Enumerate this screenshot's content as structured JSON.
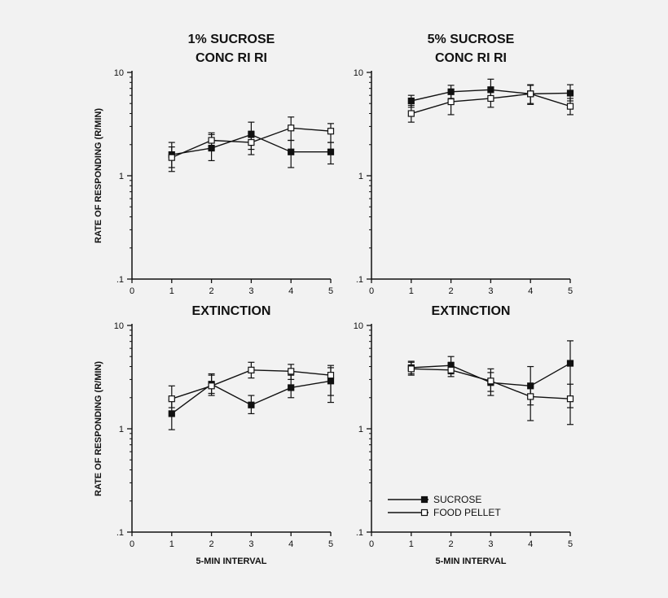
{
  "chart_data": [
    {
      "type": "line",
      "title_lines": [
        "1% SUCROSE",
        "CONC RI RI"
      ],
      "ylabel": "RATE OF RESPONDING (R/MIN)",
      "xlabel": "",
      "yscale": "log",
      "ylim": [
        0.1,
        10
      ],
      "xlim": [
        0,
        5
      ],
      "xticks": [
        "0",
        "1",
        "2",
        "3",
        "4",
        "5"
      ],
      "yticks": [
        ".1",
        "1",
        "10"
      ],
      "x": [
        1,
        2,
        3,
        4,
        5
      ],
      "series": [
        {
          "name": "SUCROSE",
          "marker": "filled-square",
          "values": [
            1.6,
            1.85,
            2.5,
            1.7,
            1.7
          ],
          "error_low": [
            1.2,
            1.4,
            1.8,
            1.2,
            1.3
          ],
          "error_high": [
            2.1,
            2.5,
            3.3,
            2.2,
            2.1
          ]
        },
        {
          "name": "FOOD PELLET",
          "marker": "open-square",
          "values": [
            1.5,
            2.2,
            2.1,
            2.9,
            2.7
          ],
          "error_low": [
            1.1,
            1.9,
            1.6,
            2.2,
            2.1
          ],
          "error_high": [
            1.9,
            2.6,
            2.7,
            3.7,
            3.2
          ]
        }
      ]
    },
    {
      "type": "line",
      "title_lines": [
        "5% SUCROSE",
        "CONC RI RI"
      ],
      "ylabel": "",
      "xlabel": "",
      "yscale": "log",
      "ylim": [
        0.1,
        10
      ],
      "xlim": [
        0,
        5
      ],
      "xticks": [
        "0",
        "1",
        "2",
        "3",
        "4",
        "5"
      ],
      "yticks": [
        ".1",
        "1",
        "10"
      ],
      "x": [
        1,
        2,
        3,
        4,
        5
      ],
      "series": [
        {
          "name": "SUCROSE",
          "marker": "filled-square",
          "values": [
            5.3,
            6.5,
            6.8,
            6.2,
            6.3
          ],
          "error_low": [
            4.6,
            5.6,
            5.6,
            4.9,
            5.3
          ],
          "error_high": [
            6.0,
            7.5,
            8.6,
            7.6,
            7.6
          ]
        },
        {
          "name": "FOOD PELLET",
          "marker": "open-square",
          "values": [
            4.0,
            5.2,
            5.6,
            6.2,
            4.7
          ],
          "error_low": [
            3.3,
            3.9,
            4.6,
            5.0,
            3.9
          ],
          "error_high": [
            4.8,
            6.4,
            6.7,
            7.5,
            5.6
          ]
        }
      ]
    },
    {
      "type": "line",
      "title_lines": [
        "EXTINCTION"
      ],
      "ylabel": "RATE OF RESPONDING (R/MIN)",
      "xlabel": "5-MIN INTERVAL",
      "yscale": "log",
      "ylim": [
        0.1,
        10
      ],
      "xlim": [
        0,
        5
      ],
      "xticks": [
        "0",
        "1",
        "2",
        "3",
        "4",
        "5"
      ],
      "yticks": [
        ".1",
        "1",
        "10"
      ],
      "x": [
        1,
        2,
        3,
        4,
        5
      ],
      "series": [
        {
          "name": "SUCROSE",
          "marker": "filled-square",
          "values": [
            1.4,
            2.7,
            1.7,
            2.5,
            2.9
          ],
          "error_low": [
            0.98,
            2.2,
            1.4,
            2.0,
            2.1
          ],
          "error_high": [
            1.9,
            3.3,
            2.1,
            3.3,
            3.9
          ]
        },
        {
          "name": "FOOD PELLET",
          "marker": "open-square",
          "values": [
            1.95,
            2.6,
            3.7,
            3.6,
            3.3
          ],
          "error_low": [
            1.6,
            2.1,
            3.1,
            3.0,
            1.8
          ],
          "error_high": [
            2.6,
            3.4,
            4.4,
            4.2,
            4.1
          ]
        }
      ]
    },
    {
      "type": "line",
      "title_lines": [
        "EXTINCTION"
      ],
      "ylabel": "",
      "xlabel": "5-MIN INTERVAL",
      "yscale": "log",
      "ylim": [
        0.1,
        10
      ],
      "xlim": [
        0,
        5
      ],
      "xticks": [
        "0",
        "1",
        "2",
        "3",
        "4",
        "5"
      ],
      "yticks": [
        ".1",
        "1",
        "10"
      ],
      "x": [
        1,
        2,
        3,
        4,
        5
      ],
      "legend": {
        "placement": "bottom-left",
        "entries": [
          "SUCROSE",
          "FOOD PELLET"
        ]
      },
      "series": [
        {
          "name": "SUCROSE",
          "marker": "filled-square",
          "values": [
            3.9,
            4.1,
            2.8,
            2.6,
            4.3
          ],
          "error_low": [
            3.4,
            3.4,
            2.1,
            1.7,
            1.6
          ],
          "error_high": [
            4.5,
            5.0,
            3.8,
            4.0,
            7.1
          ]
        },
        {
          "name": "FOOD PELLET",
          "marker": "open-square",
          "values": [
            3.8,
            3.7,
            2.9,
            2.05,
            1.95
          ],
          "error_low": [
            3.3,
            3.2,
            2.3,
            1.2,
            1.1
          ],
          "error_high": [
            4.4,
            4.4,
            3.5,
            2.6,
            2.7
          ]
        }
      ]
    }
  ]
}
